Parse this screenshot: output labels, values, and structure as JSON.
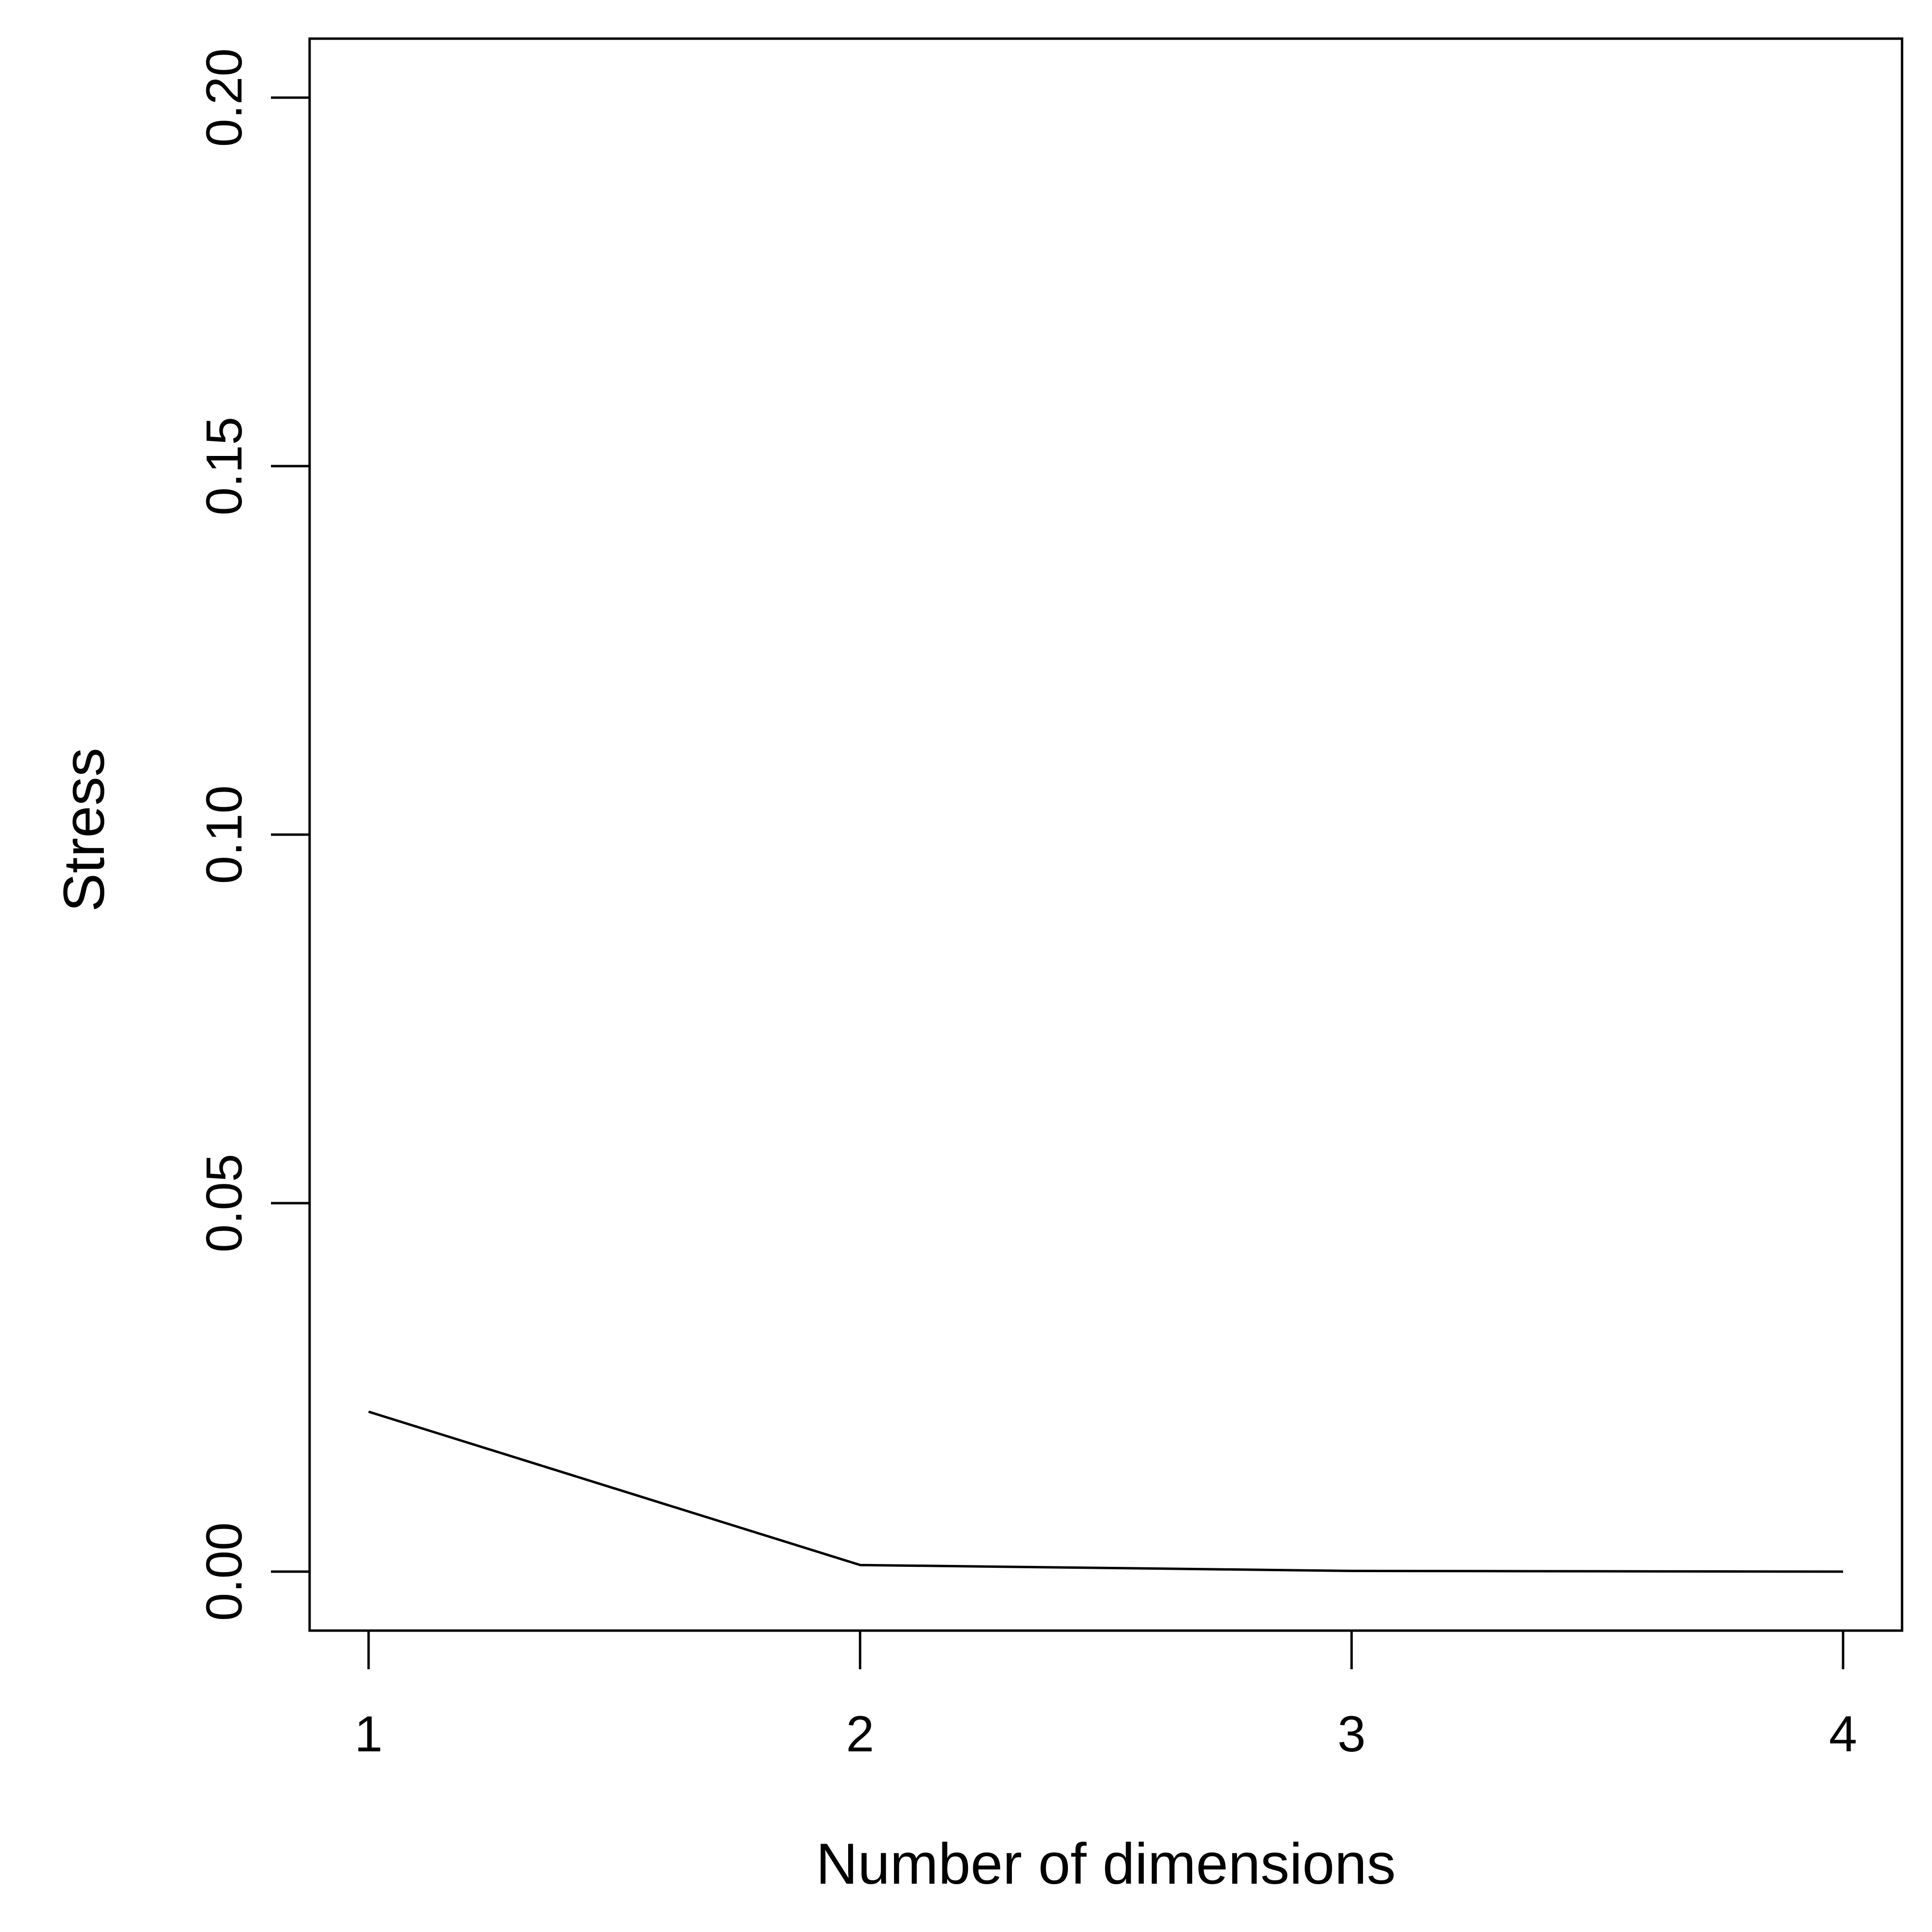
{
  "chart_data": {
    "type": "line",
    "title": "",
    "xlabel": "Number of dimensions",
    "ylabel": "Stress",
    "x": [
      1,
      2,
      3,
      4
    ],
    "y": [
      0.0217,
      0.0009,
      0.0001,
      0.0
    ],
    "xlim": [
      0.88,
      4.12
    ],
    "ylim": [
      -0.008,
      0.208
    ],
    "xticks": [
      1,
      2,
      3,
      4
    ],
    "xtick_labels": [
      "1",
      "2",
      "3",
      "4"
    ],
    "yticks": [
      0.0,
      0.05,
      0.1,
      0.15,
      0.2
    ],
    "ytick_labels": [
      "0.00",
      "0.05",
      "0.10",
      "0.15",
      "0.20"
    ],
    "grid": false,
    "legend": "none",
    "line_color": "#000000"
  }
}
